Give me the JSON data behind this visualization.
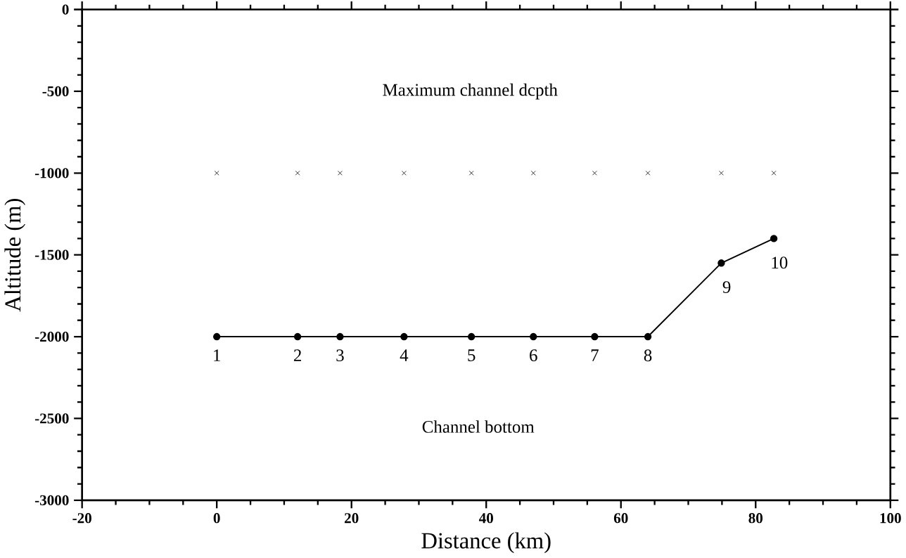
{
  "chart_data": {
    "type": "line",
    "xlabel": "Distance (km)",
    "ylabel": "Altitude (m)",
    "xlim": [
      -20,
      100
    ],
    "xticks": [
      -20,
      0,
      20,
      40,
      60,
      80,
      100
    ],
    "ylim": [
      -3000,
      0
    ],
    "yticks": [
      -3000,
      -2500,
      -2000,
      -1500,
      -1000,
      -500,
      0
    ],
    "series": [
      {
        "type": "scatter",
        "marker": "cross",
        "color": "#000000",
        "x": [
          0,
          12,
          18.3,
          27.8,
          37.8,
          47,
          56.1,
          64,
          74.9,
          82.7
        ],
        "values": [
          -1000,
          -1000,
          -1000,
          -1000,
          -1000,
          -1000,
          -1000,
          -1000,
          -1000,
          -1000
        ]
      },
      {
        "marker": "circle",
        "color": "#000000",
        "x": [
          0,
          12,
          18.3,
          27.8,
          37.8,
          47,
          56.1,
          64,
          74.9,
          82.7
        ],
        "values": [
          -2000,
          -2000,
          -2000,
          -2000,
          -2000,
          -2000,
          -2000,
          -2000,
          -1550,
          -1400
        ]
      }
    ],
    "annotations": [
      "Maximum channel dcpth",
      "Channel bottom",
      {
        "text": "1",
        "x": 0,
        "y": -2000
      },
      {
        "text": "2",
        "x": 12,
        "y": -2000
      },
      {
        "text": "3",
        "x": 18.3,
        "y": -2000
      },
      {
        "text": "4",
        "x": 27.8,
        "y": -2000
      },
      {
        "text": "5",
        "x": 37.8,
        "y": -2000
      },
      {
        "text": "6",
        "x": 47,
        "y": -2000
      },
      {
        "text": "7",
        "x": 56.1,
        "y": -2000
      },
      {
        "text": "8",
        "x": 64,
        "y": -2000
      },
      {
        "text": "9",
        "x": 74.9,
        "y": -1550
      },
      {
        "text": "10",
        "x": 82.7,
        "y": -1400
      }
    ]
  }
}
